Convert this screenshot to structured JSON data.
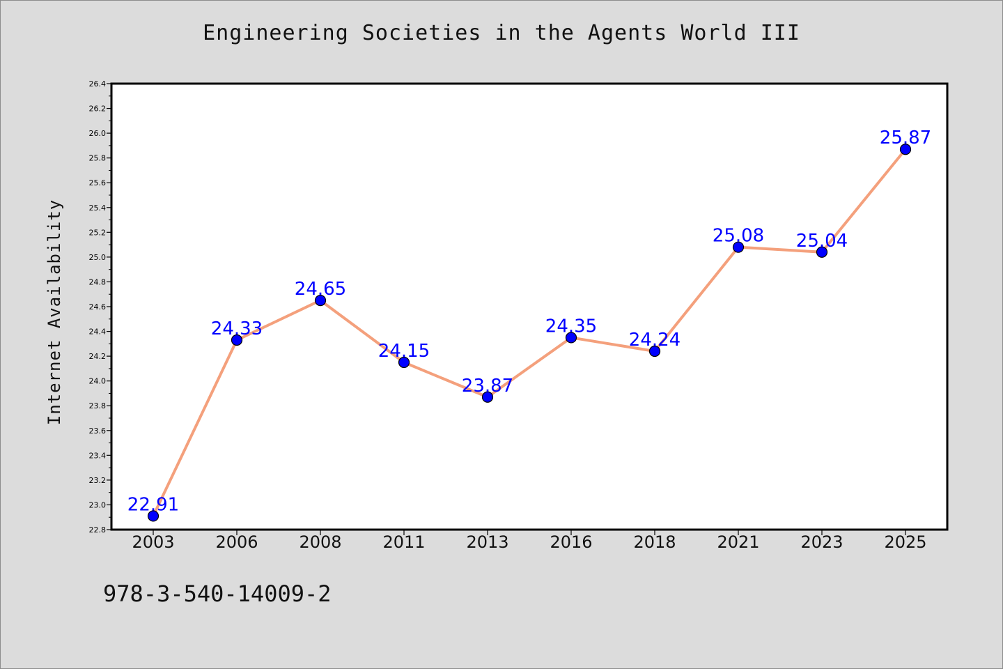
{
  "header": {
    "title": "Engineering Societies in the Agents World III"
  },
  "footer": {
    "isbn": "978-3-540-14009-2"
  },
  "colors": {
    "background": "#dcdcdc",
    "plot_background": "#ffffff",
    "line": "#f4a07c",
    "marker": "#0000ff",
    "data_label": "#0000ff"
  },
  "chart_data": {
    "type": "line",
    "title": "Engineering Societies in the Agents World III",
    "xlabel": "",
    "ylabel": "Internet Availability",
    "categories": [
      "2003",
      "2006",
      "2008",
      "2011",
      "2013",
      "2016",
      "2018",
      "2021",
      "2023",
      "2025"
    ],
    "series": [
      {
        "values": [
          22.91,
          24.33,
          24.65,
          24.15,
          23.87,
          24.35,
          24.24,
          25.08,
          25.04,
          25.87
        ]
      }
    ],
    "data_labels": [
      "22.91",
      "24.33",
      "24.65",
      "24.15",
      "23.87",
      "24.35",
      "24.24",
      "25.08",
      "25.04",
      "25.87"
    ],
    "ylim": [
      22.8,
      26.4
    ],
    "yticks": [
      "22.8",
      "23.0",
      "23.2",
      "23.4",
      "23.6",
      "23.8",
      "24.0",
      "24.2",
      "24.4",
      "24.6",
      "24.8",
      "25.0",
      "25.2",
      "25.4",
      "25.6",
      "25.8",
      "26.0",
      "26.2",
      "26.4"
    ],
    "grid": false,
    "legend": "none",
    "marker": "circle"
  }
}
